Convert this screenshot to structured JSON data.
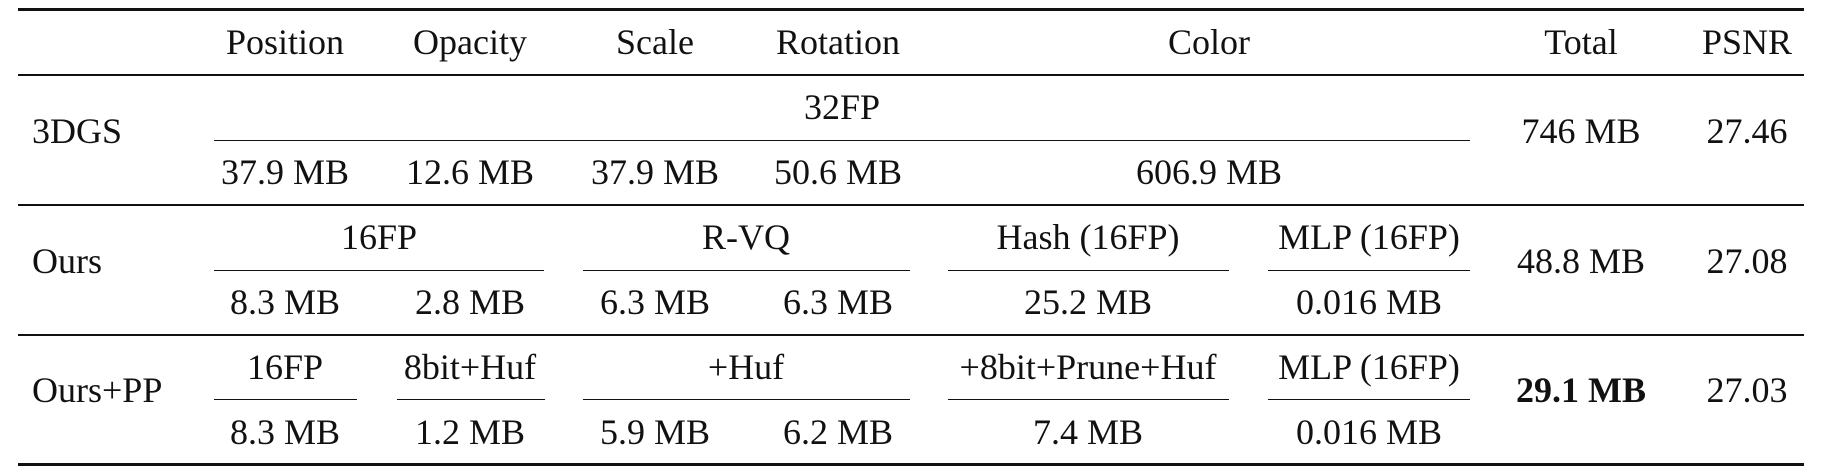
{
  "header": {
    "position": "Position",
    "opacity": "Opacity",
    "scale": "Scale",
    "rotation": "Rotation",
    "color": "Color",
    "total": "Total",
    "psnr": "PSNR"
  },
  "rows": {
    "3dgs": {
      "method": "3DGS",
      "format": "32FP",
      "position": "37.9 MB",
      "opacity": "12.6 MB",
      "scale": "37.9 MB",
      "rotation": "50.6 MB",
      "color": "606.9 MB",
      "total": "746 MB",
      "psnr": "27.46"
    },
    "ours": {
      "method": "Ours",
      "format_pos_opa": "16FP",
      "format_scale_rot": "R-VQ",
      "format_hash": "Hash (16FP)",
      "format_mlp": "MLP (16FP)",
      "position": "8.3 MB",
      "opacity": "2.8 MB",
      "scale": "6.3 MB",
      "rotation": "6.3 MB",
      "hash": "25.2 MB",
      "mlp": "0.016 MB",
      "total": "48.8 MB",
      "psnr": "27.08"
    },
    "ourspp": {
      "method": "Ours+PP",
      "format_pos": "16FP",
      "format_opa": "8bit+Huf",
      "format_scale_rot": "+Huf",
      "format_hash": "+8bit+Prune+Huf",
      "format_mlp": "MLP (16FP)",
      "position": "8.3 MB",
      "opacity": "1.2 MB",
      "scale": "5.9 MB",
      "rotation": "6.2 MB",
      "hash": "7.4 MB",
      "mlp": "0.016 MB",
      "total": "29.1 MB",
      "psnr": "27.03"
    }
  }
}
